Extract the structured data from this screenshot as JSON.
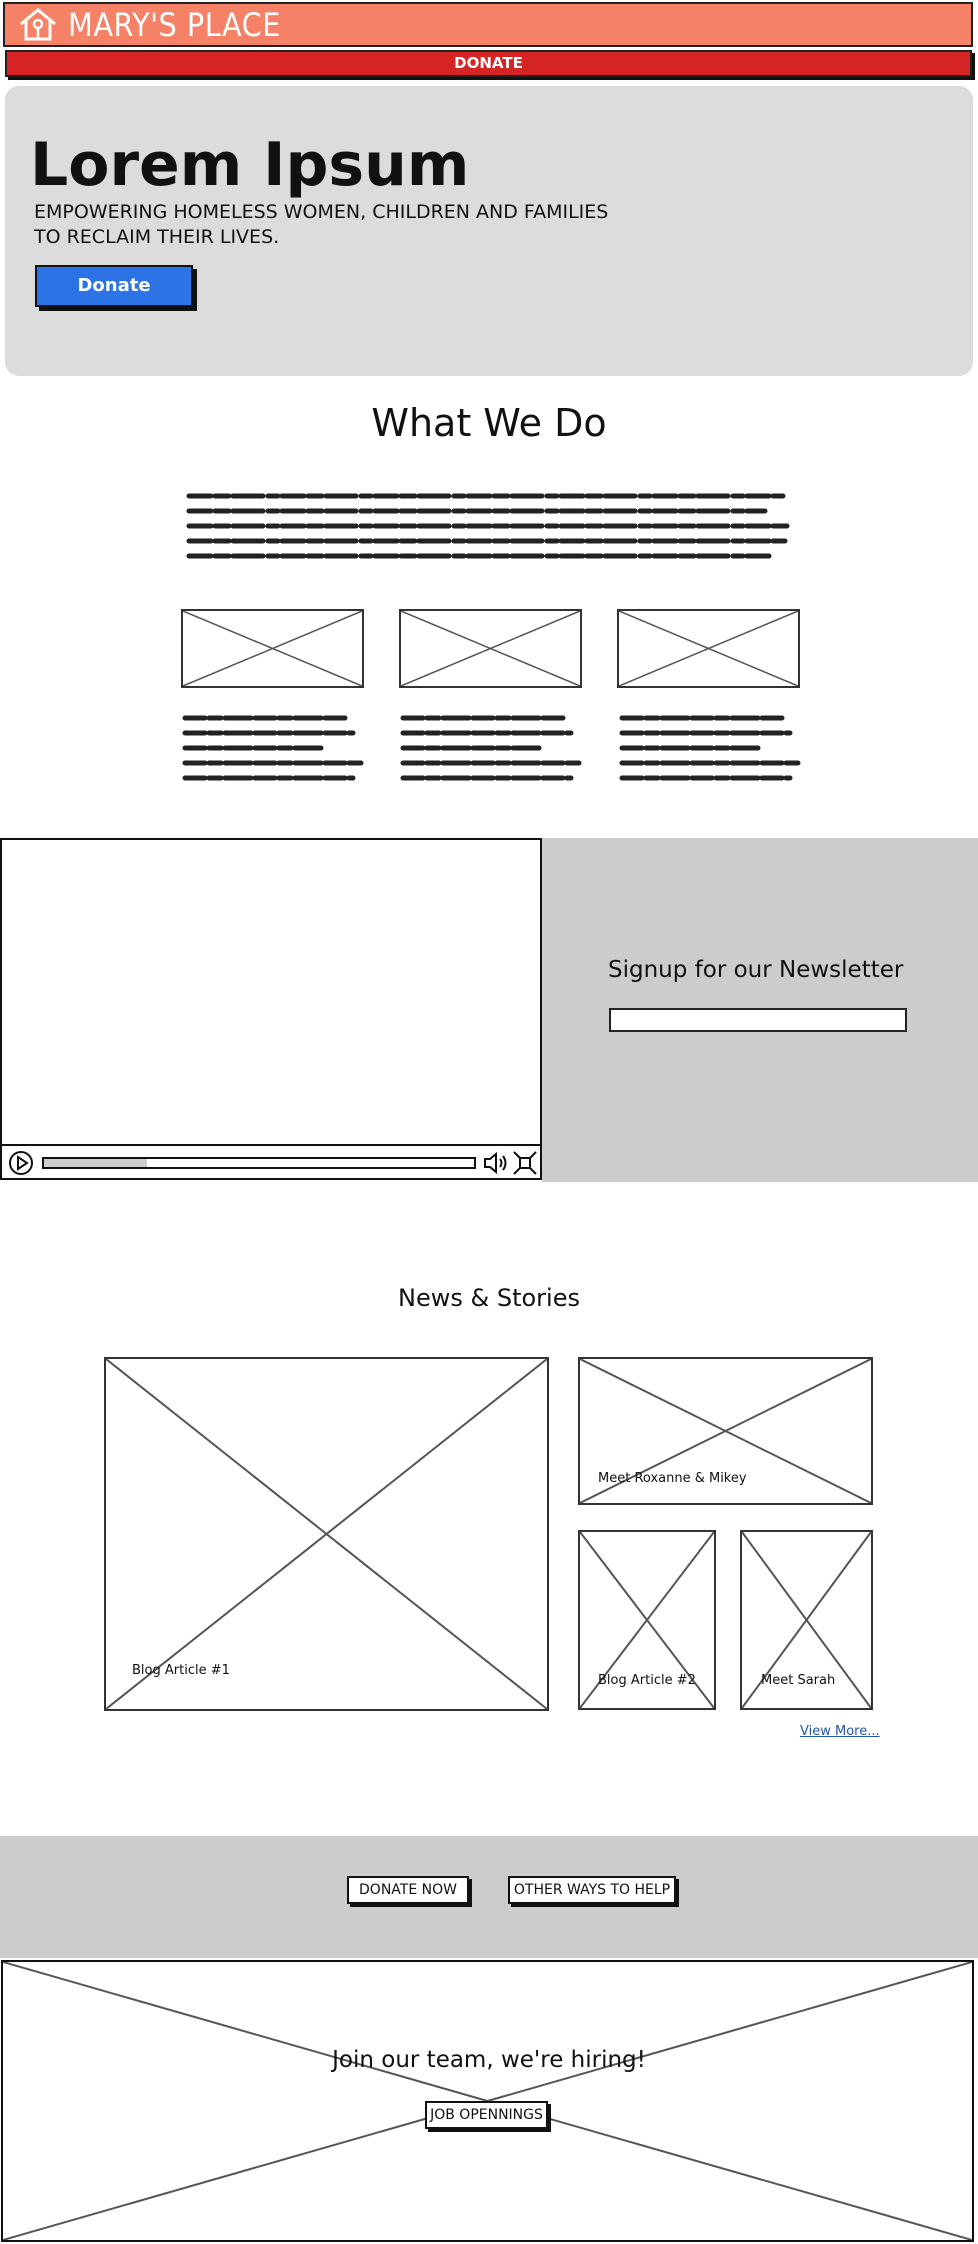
{
  "header": {
    "brand": "MARY'S PLACE",
    "donate_label": "DONATE"
  },
  "hero": {
    "title": "Lorem Ipsum",
    "subtitle_line1": "EMPOWERING HOMELESS WOMEN, CHILDREN AND FAMILIES",
    "subtitle_line2": "TO RECLAIM THEIR LIVES.",
    "button_label": "Donate"
  },
  "what_we_do": {
    "title": "What We Do"
  },
  "newsletter": {
    "title": "Signup for our Newsletter",
    "input_value": ""
  },
  "video": {
    "progress": 0.24
  },
  "news": {
    "title": "News & Stories",
    "articles": [
      {
        "caption": "Blog Article #1"
      },
      {
        "caption": "Meet Roxanne & Mikey"
      },
      {
        "caption": "Blog Article #2"
      },
      {
        "caption": "Meet Sarah"
      }
    ],
    "view_more": "View More..."
  },
  "cta": {
    "donate_now": "DONATE NOW",
    "other_ways": "OTHER WAYS TO HELP"
  },
  "hiring": {
    "title": "Join our team, we're hiring!",
    "button_label": "JOB OPENNINGS"
  },
  "colors": {
    "header": "#f58266",
    "donate_bar": "#d42424",
    "primary_button": "#2c74e6",
    "panel_gray": "#cccccc",
    "hero_gray": "#dcdcdc",
    "link": "#2356a8"
  },
  "icons": {
    "logo": "house-icon",
    "play": "play-icon",
    "volume": "volume-icon",
    "fullscreen": "fullscreen-icon"
  }
}
